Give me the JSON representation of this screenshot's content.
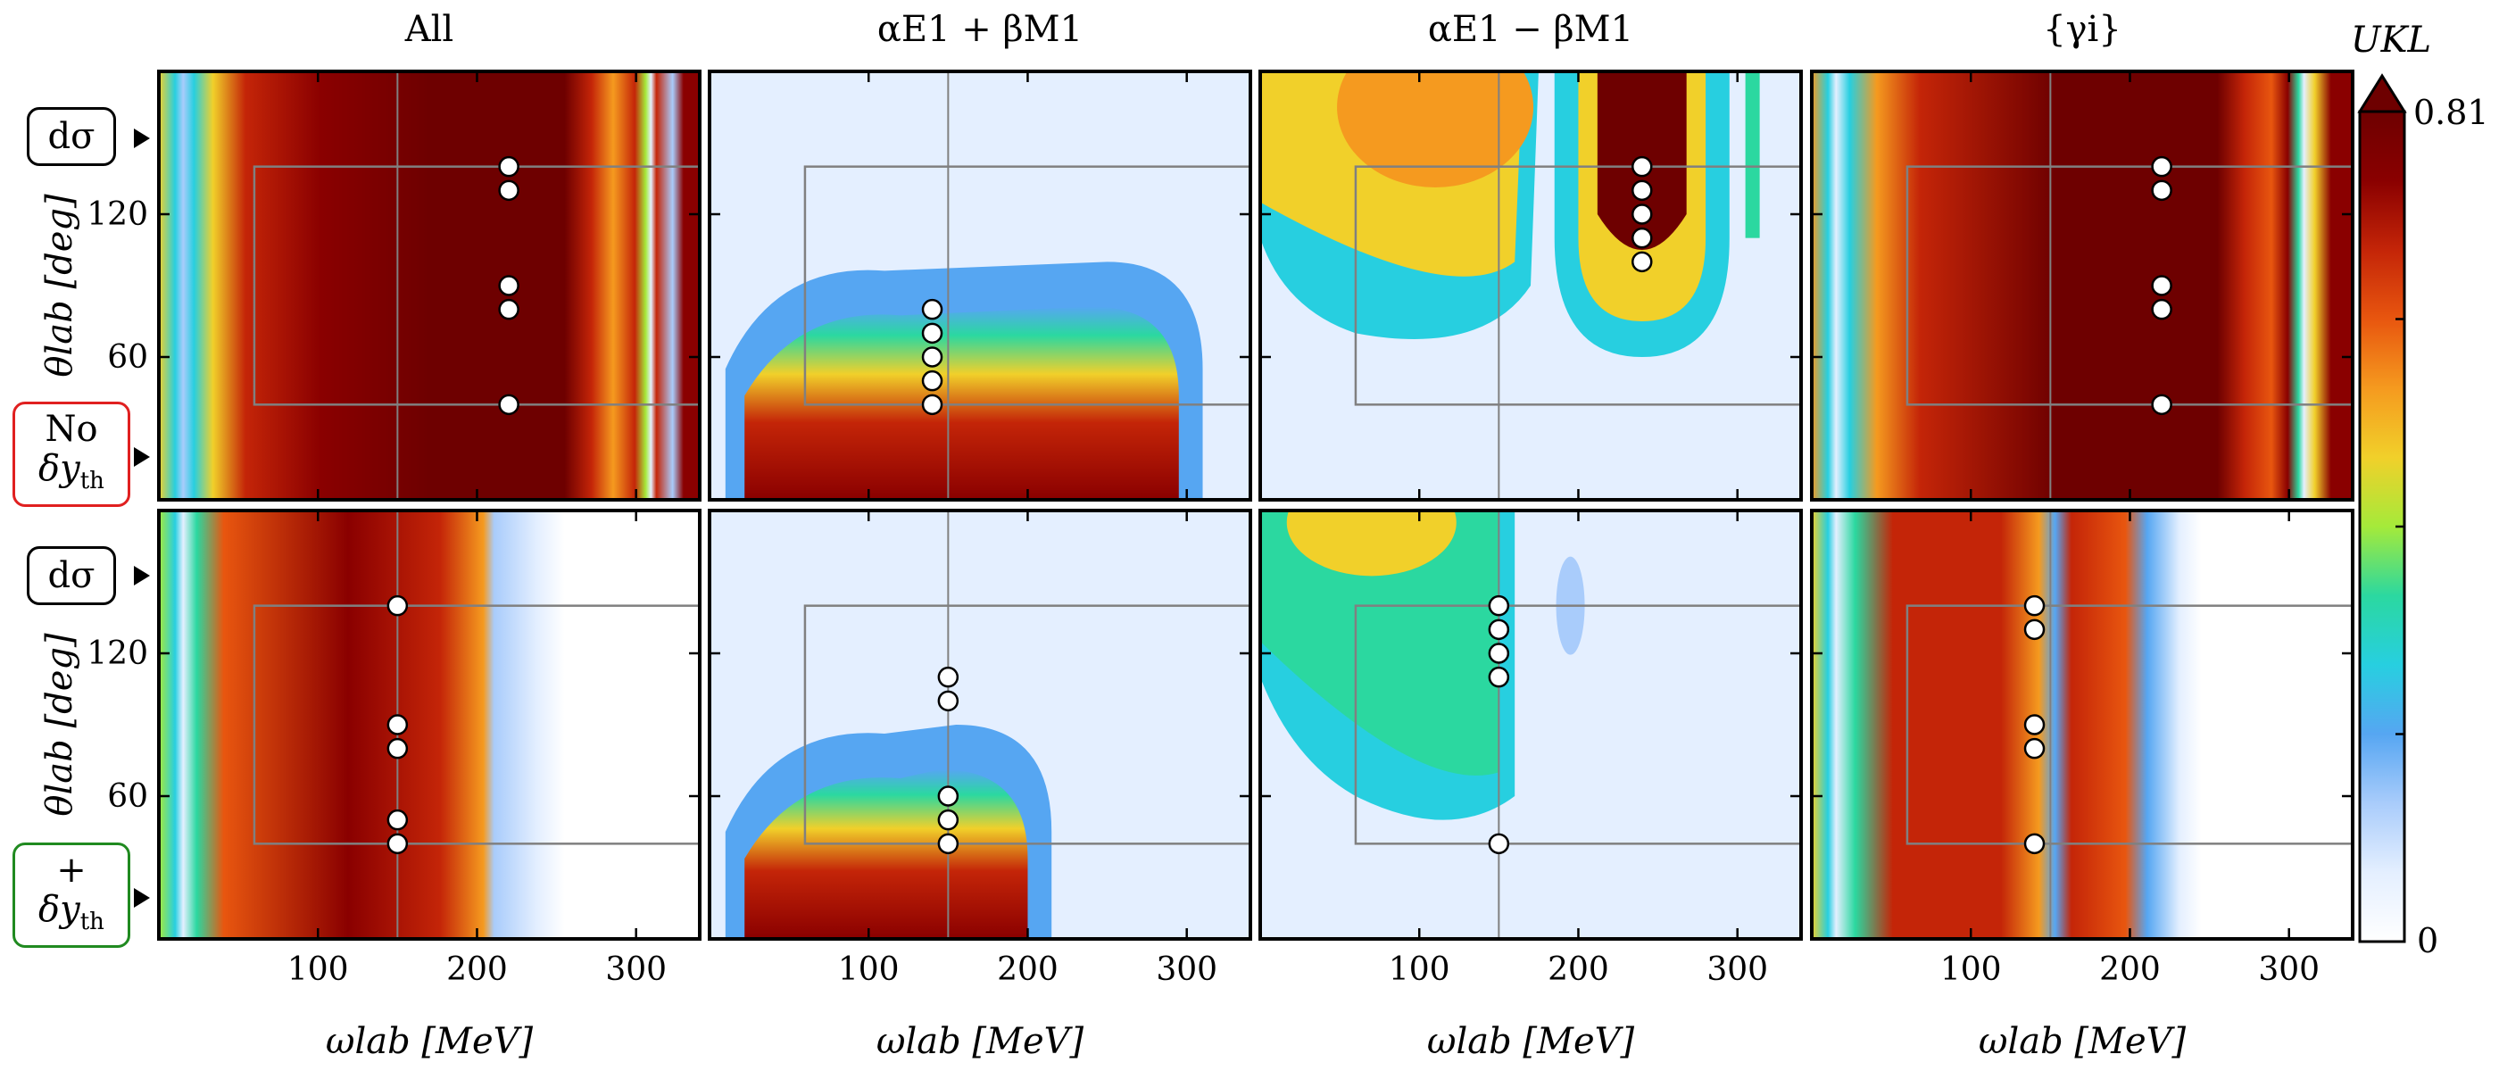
{
  "colors": {
    "colormap": [
      "#ffffff",
      "#e4efff",
      "#a9ccfb",
      "#56a6f2",
      "#27cfe0",
      "#2bd8a0",
      "#a5ea3a",
      "#f1d02a",
      "#f59a1f",
      "#e8560f",
      "#c42508",
      "#8a0000",
      "#6e0000"
    ],
    "no_box_border": "#e02020",
    "plus_box_border": "#208a20",
    "design_box": "#808080",
    "marker_face": "#ffffff",
    "marker_edge": "#000000"
  },
  "rows": [
    {
      "label_main": "dσ",
      "label_box_top": "No",
      "label_box_bottom": "δy",
      "label_box_sub": "th",
      "border": "no_box_border"
    },
    {
      "label_main": "dσ",
      "label_box_top": "+",
      "label_box_bottom": "δy",
      "label_box_sub": "th",
      "border": "plus_box_border"
    }
  ],
  "chart_data": {
    "type": "heatmap",
    "grid": "2x4",
    "column_titles": [
      "All",
      "αE1 + βM1",
      "αE1 − βM1",
      "{γi}"
    ],
    "xlabel": "ωlab [MeV]",
    "ylabel": "θlab [deg]",
    "xlim": [
      0,
      340
    ],
    "ylim": [
      0,
      180
    ],
    "xticks": [
      100,
      200,
      300
    ],
    "yticks": [
      60,
      120
    ],
    "colorbar": {
      "label": "UKL",
      "min": 0,
      "max": 0.81,
      "tick_labels": [
        "0",
        "0.81"
      ],
      "extend": "max"
    },
    "design_box": {
      "x": [
        60,
        340
      ],
      "y": [
        40,
        140
      ]
    },
    "panels": [
      {
        "row": 0,
        "col": 0,
        "vline": 150,
        "points": [
          [
            220,
            140
          ],
          [
            220,
            130
          ],
          [
            220,
            90
          ],
          [
            220,
            80
          ],
          [
            220,
            40
          ]
        ]
      },
      {
        "row": 0,
        "col": 1,
        "vline": 150,
        "points": [
          [
            140,
            80
          ],
          [
            140,
            70
          ],
          [
            140,
            60
          ],
          [
            140,
            50
          ],
          [
            140,
            40
          ]
        ]
      },
      {
        "row": 0,
        "col": 2,
        "vline": 150,
        "points": [
          [
            240,
            140
          ],
          [
            240,
            130
          ],
          [
            240,
            120
          ],
          [
            240,
            110
          ],
          [
            240,
            100
          ]
        ]
      },
      {
        "row": 0,
        "col": 3,
        "vline": 150,
        "points": [
          [
            220,
            140
          ],
          [
            220,
            130
          ],
          [
            220,
            90
          ],
          [
            220,
            80
          ],
          [
            220,
            40
          ]
        ]
      },
      {
        "row": 1,
        "col": 0,
        "vline": 150,
        "points": [
          [
            150,
            140
          ],
          [
            150,
            90
          ],
          [
            150,
            80
          ],
          [
            150,
            50
          ],
          [
            150,
            40
          ]
        ]
      },
      {
        "row": 1,
        "col": 1,
        "vline": 150,
        "points": [
          [
            150,
            110
          ],
          [
            150,
            100
          ],
          [
            150,
            60
          ],
          [
            150,
            50
          ],
          [
            150,
            40
          ]
        ]
      },
      {
        "row": 1,
        "col": 2,
        "vline": 150,
        "points": [
          [
            150,
            140
          ],
          [
            150,
            130
          ],
          [
            150,
            120
          ],
          [
            150,
            110
          ],
          [
            150,
            40
          ]
        ]
      },
      {
        "row": 1,
        "col": 3,
        "vline": 150,
        "points": [
          [
            140,
            140
          ],
          [
            140,
            130
          ],
          [
            140,
            90
          ],
          [
            140,
            80
          ],
          [
            140,
            40
          ]
        ]
      }
    ]
  }
}
